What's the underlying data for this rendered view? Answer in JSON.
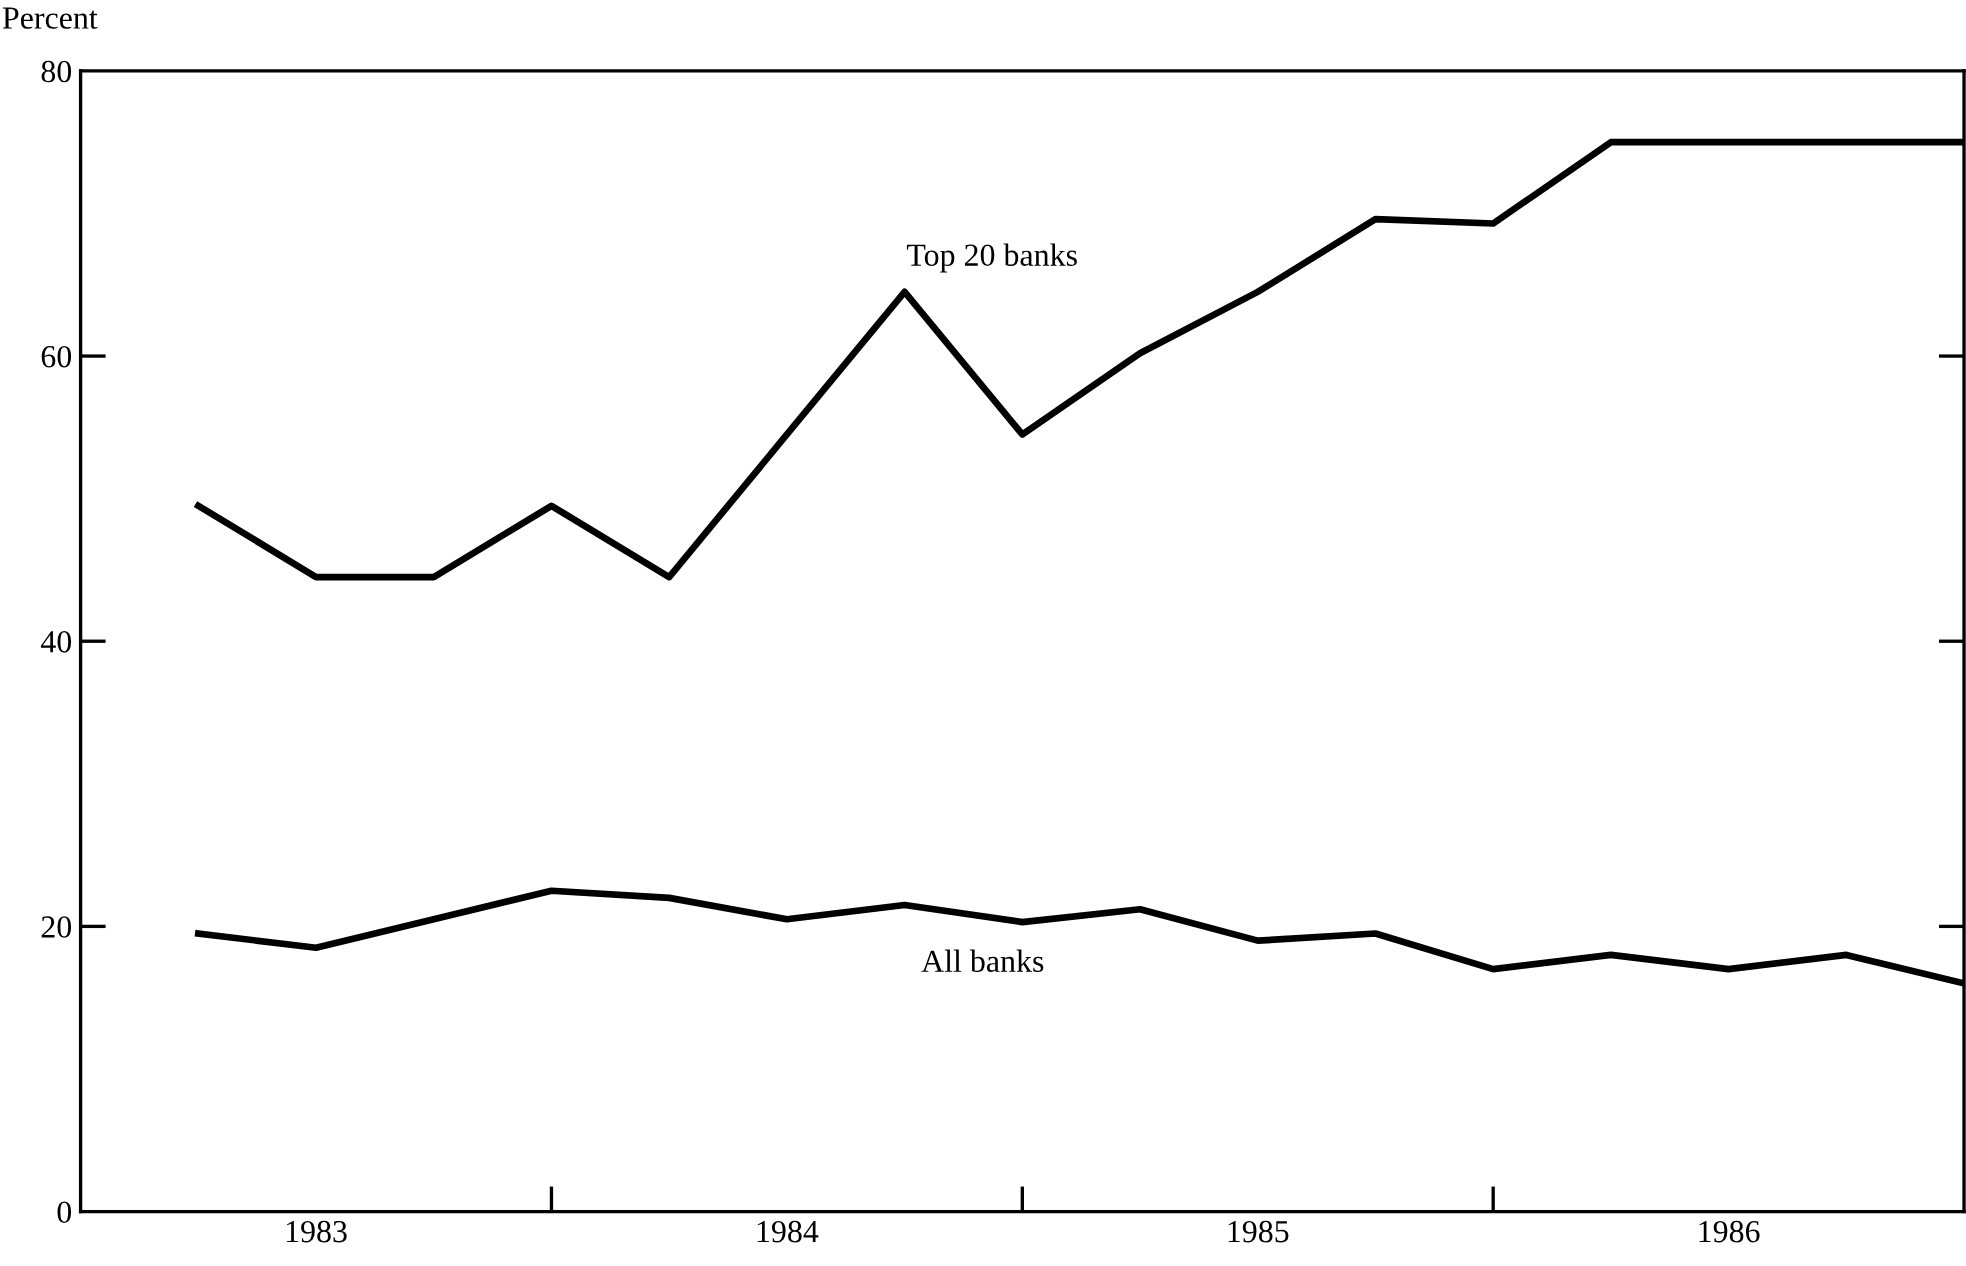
{
  "chart_data": {
    "type": "line",
    "ylabel": "Percent",
    "x": [
      1983.25,
      1983.5,
      1983.75,
      1984.0,
      1984.25,
      1984.5,
      1984.75,
      1985.0,
      1985.25,
      1985.5,
      1985.75,
      1986.0,
      1986.25,
      1986.5,
      1986.75,
      1987.0
    ],
    "series": [
      {
        "name": "Top 20 banks",
        "color": "#000000",
        "values": [
          49.5,
          44.5,
          44.5,
          49.5,
          44.5,
          54.5,
          64.5,
          54.5,
          60.2,
          64.5,
          69.6,
          69.3,
          75,
          75,
          75,
          75
        ]
      },
      {
        "name": "All banks",
        "color": "#000000",
        "values": [
          19.5,
          18.5,
          20.5,
          22.5,
          22,
          20.5,
          21.5,
          20.3,
          21.2,
          19,
          19.5,
          17,
          18,
          17,
          18,
          16
        ]
      }
    ],
    "xlim": [
      1983,
      1987
    ],
    "ylim": [
      0,
      80
    ],
    "xticks": [
      {
        "value": 1983.5,
        "label": "1983"
      },
      {
        "value": 1984,
        "label": null
      },
      {
        "value": 1984.5,
        "label": "1984"
      },
      {
        "value": 1985,
        "label": null
      },
      {
        "value": 1985.5,
        "label": "1985"
      },
      {
        "value": 1986,
        "label": null
      },
      {
        "value": 1986.5,
        "label": "1986"
      }
    ],
    "yticks": [
      0,
      20,
      40,
      60,
      80
    ],
    "grid": false,
    "legend": false,
    "marker": "none",
    "line_style": "solid"
  }
}
